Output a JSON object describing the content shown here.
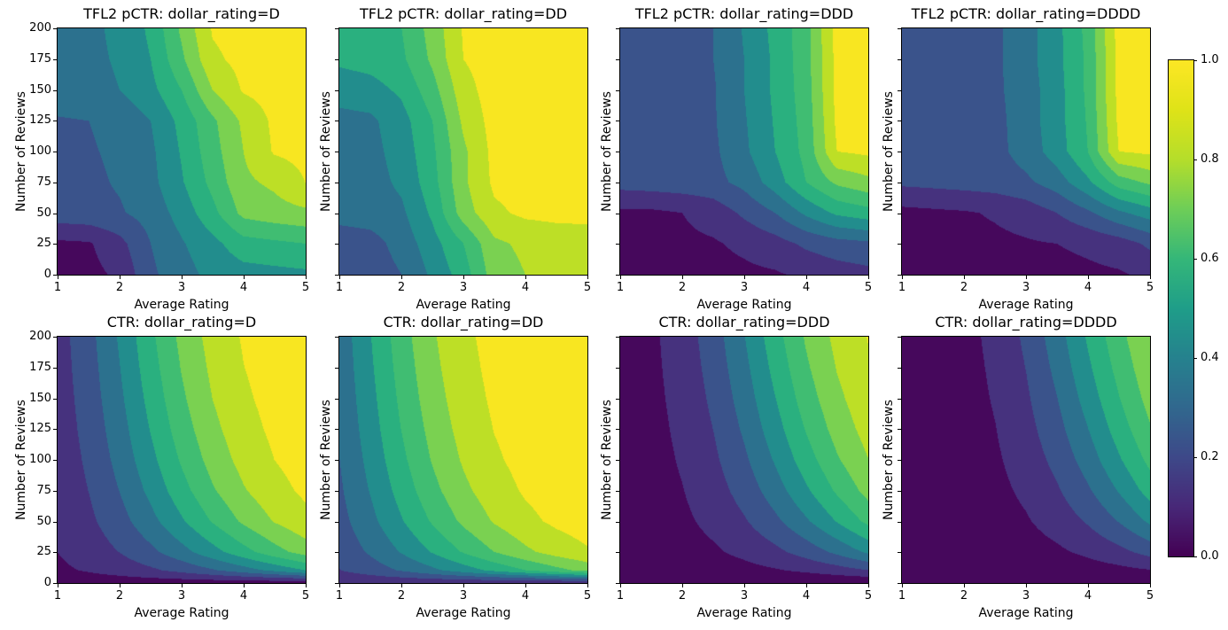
{
  "figure": {
    "background": "#ffffff"
  },
  "axes": {
    "xlabel": "Average Rating",
    "ylabel": "Number of Reviews",
    "x_tick_labels": [
      "1",
      "2",
      "3",
      "4",
      "5"
    ],
    "y_tick_labels": [
      "0",
      "25",
      "50",
      "75",
      "100",
      "125",
      "150",
      "175",
      "200"
    ],
    "x_range": [
      1,
      5
    ],
    "y_range": [
      0,
      200
    ]
  },
  "colorbar": {
    "tick_labels": [
      "0.0",
      "0.2",
      "0.4",
      "0.6",
      "0.8",
      "1.0"
    ],
    "min": 0.0,
    "max": 1.0
  },
  "colormap": {
    "name": "viridis",
    "levels": [
      0,
      0.1,
      0.2,
      0.3,
      0.4,
      0.5,
      0.6,
      0.7,
      0.8,
      0.9,
      1.0
    ],
    "band_colors": [
      "#46085c",
      "#46327e",
      "#3a538b",
      "#2c718e",
      "#228d8d",
      "#2ab07f",
      "#40bd72",
      "#7ad151",
      "#bddf26",
      "#f8e621"
    ],
    "gradient_stops": [
      [
        0,
        "#440154"
      ],
      [
        0.1,
        "#482878"
      ],
      [
        0.2,
        "#3e4989"
      ],
      [
        0.3,
        "#31688e"
      ],
      [
        0.4,
        "#26828e"
      ],
      [
        0.5,
        "#1f9e89"
      ],
      [
        0.6,
        "#35b779"
      ],
      [
        0.7,
        "#6ece58"
      ],
      [
        0.8,
        "#b5de2b"
      ],
      [
        0.9,
        "#dfe318"
      ],
      [
        1.0,
        "#fde725"
      ]
    ]
  },
  "chart_data": [
    {
      "title": "TFL2 pCTR: dollar_rating=D",
      "type": "contour_filled",
      "slug": "tfl2-pctr-d",
      "x": [
        1,
        1.5,
        2,
        2.5,
        3,
        3.5,
        4,
        4.5,
        5
      ],
      "y": [
        0,
        25,
        50,
        75,
        100,
        125,
        150,
        175,
        200
      ],
      "values": [
        [
          0.06,
          0.07,
          0.12,
          0.28,
          0.36,
          0.43,
          0.46,
          0.47,
          0.48
        ],
        [
          0.08,
          0.09,
          0.17,
          0.3,
          0.39,
          0.47,
          0.56,
          0.58,
          0.6
        ],
        [
          0.26,
          0.27,
          0.29,
          0.34,
          0.44,
          0.57,
          0.73,
          0.76,
          0.78
        ],
        [
          0.27,
          0.28,
          0.31,
          0.37,
          0.49,
          0.63,
          0.78,
          0.82,
          0.9
        ],
        [
          0.28,
          0.29,
          0.32,
          0.38,
          0.51,
          0.66,
          0.8,
          0.91,
          0.93
        ],
        [
          0.29,
          0.3,
          0.33,
          0.4,
          0.53,
          0.68,
          0.82,
          0.92,
          0.94
        ],
        [
          0.36,
          0.37,
          0.4,
          0.47,
          0.6,
          0.8,
          0.91,
          0.94,
          0.95
        ],
        [
          0.37,
          0.38,
          0.41,
          0.5,
          0.68,
          0.88,
          0.93,
          0.95,
          0.96
        ],
        [
          0.37,
          0.38,
          0.42,
          0.52,
          0.72,
          0.91,
          0.94,
          0.96,
          0.97
        ]
      ]
    },
    {
      "title": "TFL2 pCTR: dollar_rating=DD",
      "type": "contour_filled",
      "slug": "tfl2-pctr-dd",
      "x": [
        1,
        1.5,
        2,
        2.5,
        3,
        3.5,
        4,
        4.5,
        5
      ],
      "y": [
        0,
        25,
        50,
        75,
        100,
        125,
        150,
        175,
        200
      ],
      "values": [
        [
          0.22,
          0.24,
          0.3,
          0.42,
          0.55,
          0.75,
          0.8,
          0.82,
          0.83
        ],
        [
          0.24,
          0.26,
          0.34,
          0.46,
          0.6,
          0.78,
          0.82,
          0.84,
          0.85
        ],
        [
          0.34,
          0.35,
          0.38,
          0.52,
          0.75,
          0.88,
          0.92,
          0.93,
          0.93
        ],
        [
          0.35,
          0.36,
          0.42,
          0.56,
          0.78,
          0.92,
          0.94,
          0.94,
          0.95
        ],
        [
          0.36,
          0.37,
          0.44,
          0.58,
          0.78,
          0.93,
          0.95,
          0.95,
          0.96
        ],
        [
          0.37,
          0.38,
          0.46,
          0.6,
          0.82,
          0.94,
          0.95,
          0.96,
          0.96
        ],
        [
          0.44,
          0.46,
          0.52,
          0.66,
          0.86,
          0.95,
          0.96,
          0.96,
          0.97
        ],
        [
          0.52,
          0.54,
          0.58,
          0.72,
          0.9,
          0.95,
          0.96,
          0.97,
          0.97
        ],
        [
          0.53,
          0.55,
          0.6,
          0.74,
          0.91,
          0.96,
          0.97,
          0.97,
          0.97
        ]
      ]
    },
    {
      "title": "TFL2 pCTR: dollar_rating=DDD",
      "type": "contour_filled",
      "slug": "tfl2-pctr-ddd",
      "x": [
        1,
        1.5,
        2,
        2.5,
        3,
        3.5,
        4,
        4.5,
        5
      ],
      "y": [
        0,
        25,
        50,
        75,
        100,
        125,
        150,
        175,
        200
      ],
      "values": [
        [
          0.05,
          0.05,
          0.06,
          0.07,
          0.08,
          0.09,
          0.12,
          0.15,
          0.17
        ],
        [
          0.06,
          0.07,
          0.08,
          0.09,
          0.12,
          0.16,
          0.22,
          0.26,
          0.28
        ],
        [
          0.08,
          0.08,
          0.1,
          0.14,
          0.22,
          0.3,
          0.42,
          0.52,
          0.56
        ],
        [
          0.24,
          0.25,
          0.26,
          0.27,
          0.33,
          0.45,
          0.6,
          0.72,
          0.77
        ],
        [
          0.26,
          0.26,
          0.27,
          0.28,
          0.38,
          0.5,
          0.63,
          0.9,
          0.92
        ],
        [
          0.26,
          0.27,
          0.27,
          0.29,
          0.39,
          0.51,
          0.64,
          0.92,
          0.93
        ],
        [
          0.27,
          0.27,
          0.28,
          0.29,
          0.4,
          0.52,
          0.65,
          0.93,
          0.94
        ],
        [
          0.27,
          0.28,
          0.28,
          0.3,
          0.4,
          0.52,
          0.66,
          0.93,
          0.94
        ],
        [
          0.27,
          0.28,
          0.28,
          0.3,
          0.41,
          0.53,
          0.66,
          0.94,
          0.95
        ]
      ]
    },
    {
      "title": "TFL2 pCTR: dollar_rating=DDDD",
      "type": "contour_filled",
      "slug": "tfl2-pctr-dddd",
      "x": [
        1,
        1.5,
        2,
        2.5,
        3,
        3.5,
        4,
        4.5,
        5
      ],
      "y": [
        0,
        25,
        50,
        75,
        100,
        125,
        150,
        175,
        200
      ],
      "values": [
        [
          0.04,
          0.04,
          0.05,
          0.05,
          0.06,
          0.07,
          0.08,
          0.09,
          0.12
        ],
        [
          0.05,
          0.06,
          0.07,
          0.08,
          0.09,
          0.1,
          0.12,
          0.15,
          0.22
        ],
        [
          0.07,
          0.08,
          0.09,
          0.11,
          0.14,
          0.2,
          0.28,
          0.38,
          0.45
        ],
        [
          0.22,
          0.23,
          0.24,
          0.25,
          0.28,
          0.35,
          0.48,
          0.65,
          0.72
        ],
        [
          0.24,
          0.25,
          0.25,
          0.27,
          0.34,
          0.45,
          0.6,
          0.9,
          0.92
        ],
        [
          0.25,
          0.25,
          0.26,
          0.27,
          0.35,
          0.46,
          0.61,
          0.92,
          0.93
        ],
        [
          0.25,
          0.26,
          0.26,
          0.28,
          0.35,
          0.46,
          0.62,
          0.93,
          0.94
        ],
        [
          0.26,
          0.26,
          0.27,
          0.28,
          0.36,
          0.47,
          0.62,
          0.93,
          0.94
        ],
        [
          0.26,
          0.27,
          0.27,
          0.28,
          0.36,
          0.47,
          0.63,
          0.94,
          0.95
        ]
      ]
    },
    {
      "title": "CTR: dollar_rating=D",
      "type": "contour_filled",
      "slug": "ctr-d",
      "x": [
        1,
        1.5,
        2,
        2.5,
        3,
        3.5,
        4,
        4.5,
        5
      ],
      "y": [
        0,
        10,
        25,
        50,
        75,
        100,
        125,
        150,
        175,
        200
      ],
      "values": [
        [
          0.047,
          0.047,
          0.047,
          0.047,
          0.047,
          0.047,
          0.047,
          0.047,
          0.047
        ],
        [
          0.083,
          0.109,
          0.142,
          0.182,
          0.231,
          0.289,
          0.354,
          0.425,
          0.499
        ],
        [
          0.101,
          0.145,
          0.203,
          0.276,
          0.365,
          0.463,
          0.564,
          0.661,
          0.745
        ],
        [
          0.117,
          0.179,
          0.262,
          0.368,
          0.487,
          0.608,
          0.718,
          0.806,
          0.872
        ],
        [
          0.128,
          0.202,
          0.303,
          0.427,
          0.562,
          0.688,
          0.791,
          0.867,
          0.918
        ],
        [
          0.136,
          0.219,
          0.334,
          0.471,
          0.613,
          0.739,
          0.834,
          0.9,
          0.941
        ],
        [
          0.143,
          0.234,
          0.358,
          0.506,
          0.652,
          0.774,
          0.862,
          0.92,
          0.955
        ],
        [
          0.149,
          0.246,
          0.38,
          0.534,
          0.682,
          0.801,
          0.883,
          0.934,
          0.963
        ],
        [
          0.154,
          0.257,
          0.398,
          0.558,
          0.706,
          0.821,
          0.898,
          0.944,
          0.97
        ],
        [
          0.158,
          0.267,
          0.414,
          0.578,
          0.727,
          0.838,
          0.909,
          0.951,
          0.974
        ]
      ]
    },
    {
      "title": "CTR: dollar_rating=DD",
      "type": "contour_filled",
      "slug": "ctr-dd",
      "x": [
        1,
        1.5,
        2,
        2.5,
        3,
        3.5,
        4,
        4.5,
        5
      ],
      "y": [
        0,
        10,
        25,
        50,
        75,
        100,
        125,
        150,
        175,
        200
      ],
      "values": [
        [
          0.119,
          0.119,
          0.119,
          0.119,
          0.119,
          0.119,
          0.119,
          0.119,
          0.119
        ],
        [
          0.198,
          0.25,
          0.31,
          0.377,
          0.45,
          0.524,
          0.598,
          0.668,
          0.731
        ],
        [
          0.234,
          0.315,
          0.408,
          0.509,
          0.609,
          0.701,
          0.779,
          0.841,
          0.888
        ],
        [
          0.266,
          0.372,
          0.492,
          0.612,
          0.721,
          0.809,
          0.874,
          0.919,
          0.949
        ],
        [
          0.286,
          0.407,
          0.541,
          0.67,
          0.777,
          0.857,
          0.911,
          0.946,
          0.968
        ],
        [
          0.3,
          0.433,
          0.576,
          0.708,
          0.812,
          0.885,
          0.932,
          0.961,
          0.977
        ],
        [
          0.312,
          0.454,
          0.603,
          0.735,
          0.836,
          0.903,
          0.944,
          0.969,
          0.983
        ],
        [
          0.322,
          0.47,
          0.624,
          0.757,
          0.854,
          0.916,
          0.953,
          0.975,
          0.986
        ],
        [
          0.33,
          0.485,
          0.642,
          0.774,
          0.867,
          0.926,
          0.96,
          0.978,
          0.989
        ],
        [
          0.338,
          0.497,
          0.657,
          0.788,
          0.878,
          0.933,
          0.965,
          0.981,
          0.99
        ]
      ]
    },
    {
      "title": "CTR: dollar_rating=DDD",
      "type": "contour_filled",
      "slug": "ctr-ddd",
      "x": [
        1,
        1.5,
        2,
        2.5,
        3,
        3.5,
        4,
        4.5,
        5
      ],
      "y": [
        0,
        10,
        25,
        50,
        75,
        100,
        125,
        150,
        175,
        200
      ],
      "values": [
        [
          0.012,
          0.012,
          0.012,
          0.012,
          0.012,
          0.012,
          0.012,
          0.012,
          0.012
        ],
        [
          0.022,
          0.029,
          0.039,
          0.052,
          0.069,
          0.091,
          0.119,
          0.154,
          0.197
        ],
        [
          0.027,
          0.04,
          0.059,
          0.086,
          0.124,
          0.175,
          0.242,
          0.324,
          0.419
        ],
        [
          0.032,
          0.051,
          0.081,
          0.126,
          0.19,
          0.277,
          0.385,
          0.506,
          0.626
        ],
        [
          0.035,
          0.059,
          0.097,
          0.155,
          0.24,
          0.352,
          0.483,
          0.616,
          0.734
        ],
        [
          0.038,
          0.065,
          0.11,
          0.18,
          0.281,
          0.411,
          0.554,
          0.688,
          0.797
        ],
        [
          0.04,
          0.07,
          0.121,
          0.201,
          0.316,
          0.458,
          0.607,
          0.739,
          0.838
        ],
        [
          0.041,
          0.075,
          0.131,
          0.22,
          0.346,
          0.497,
          0.65,
          0.776,
          0.867
        ],
        [
          0.043,
          0.079,
          0.14,
          0.237,
          0.372,
          0.531,
          0.684,
          0.805,
          0.887
        ],
        [
          0.044,
          0.082,
          0.148,
          0.252,
          0.396,
          0.56,
          0.712,
          0.827,
          0.903
        ]
      ]
    },
    {
      "title": "CTR: dollar_rating=DDDD",
      "type": "contour_filled",
      "slug": "ctr-dddd",
      "x": [
        1,
        1.5,
        2,
        2.5,
        3,
        3.5,
        4,
        4.5,
        5
      ],
      "y": [
        0,
        10,
        25,
        50,
        75,
        100,
        125,
        150,
        175,
        200
      ],
      "values": [
        [
          0.005,
          0.005,
          0.005,
          0.005,
          0.005,
          0.005,
          0.005,
          0.005,
          0.005
        ],
        [
          0.01,
          0.013,
          0.017,
          0.023,
          0.031,
          0.041,
          0.055,
          0.072,
          0.095
        ],
        [
          0.012,
          0.018,
          0.026,
          0.039,
          0.057,
          0.083,
          0.12,
          0.17,
          0.236
        ],
        [
          0.014,
          0.022,
          0.036,
          0.058,
          0.091,
          0.141,
          0.211,
          0.304,
          0.417
        ],
        [
          0.015,
          0.026,
          0.044,
          0.073,
          0.119,
          0.188,
          0.285,
          0.407,
          0.541
        ],
        [
          0.016,
          0.029,
          0.05,
          0.086,
          0.143,
          0.229,
          0.346,
          0.486,
          0.627
        ],
        [
          0.017,
          0.031,
          0.056,
          0.097,
          0.165,
          0.265,
          0.397,
          0.546,
          0.689
        ],
        [
          0.018,
          0.033,
          0.061,
          0.108,
          0.184,
          0.297,
          0.442,
          0.594,
          0.736
        ],
        [
          0.019,
          0.035,
          0.065,
          0.117,
          0.202,
          0.327,
          0.48,
          0.633,
          0.771
        ],
        [
          0.02,
          0.037,
          0.069,
          0.126,
          0.219,
          0.354,
          0.513,
          0.666,
          0.799
        ]
      ]
    }
  ]
}
